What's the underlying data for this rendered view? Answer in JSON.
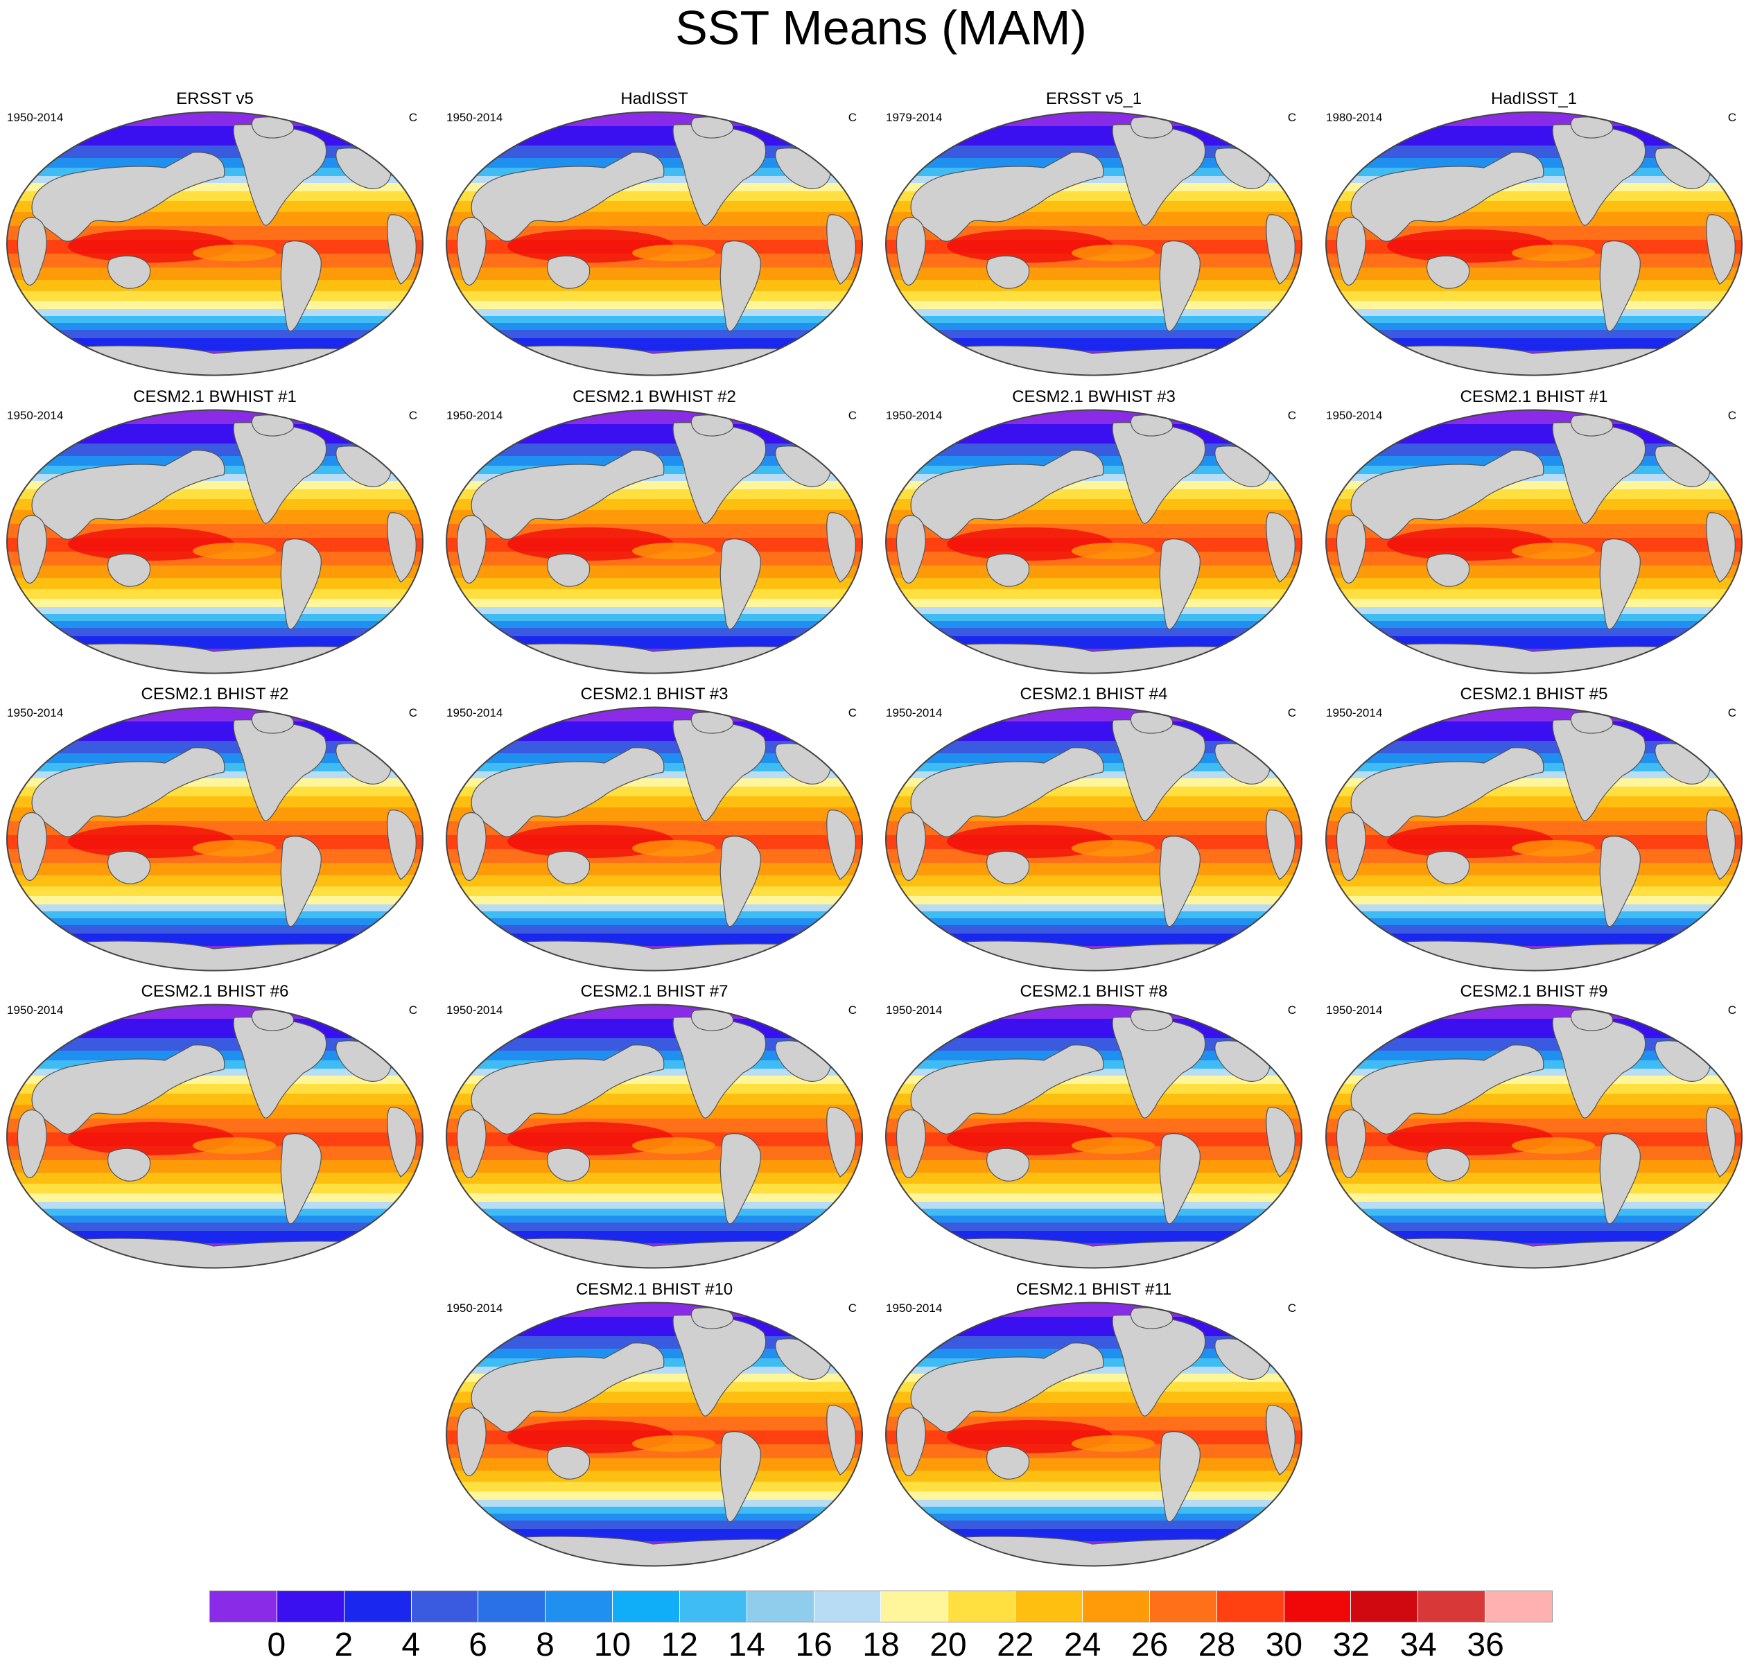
{
  "title": "SST Means (MAM)",
  "units": "C",
  "panels": [
    {
      "title": "ERSST v5",
      "years": "1950-2014",
      "units": "C"
    },
    {
      "title": "HadISST",
      "years": "1950-2014",
      "units": "C"
    },
    {
      "title": "ERSST v5_1",
      "years": "1979-2014",
      "units": "C"
    },
    {
      "title": "HadISST_1",
      "years": "1980-2014",
      "units": "C"
    },
    {
      "title": "CESM2.1 BWHIST #1",
      "years": "1950-2014",
      "units": "C"
    },
    {
      "title": "CESM2.1 BWHIST #2",
      "years": "1950-2014",
      "units": "C"
    },
    {
      "title": "CESM2.1 BWHIST #3",
      "years": "1950-2014",
      "units": "C"
    },
    {
      "title": "CESM2.1 BHIST #1",
      "years": "1950-2014",
      "units": "C"
    },
    {
      "title": "CESM2.1 BHIST #2",
      "years": "1950-2014",
      "units": "C"
    },
    {
      "title": "CESM2.1 BHIST #3",
      "years": "1950-2014",
      "units": "C"
    },
    {
      "title": "CESM2.1 BHIST #4",
      "years": "1950-2014",
      "units": "C"
    },
    {
      "title": "CESM2.1 BHIST #5",
      "years": "1950-2014",
      "units": "C"
    },
    {
      "title": "CESM2.1 BHIST #6",
      "years": "1950-2014",
      "units": "C"
    },
    {
      "title": "CESM2.1 BHIST #7",
      "years": "1950-2014",
      "units": "C"
    },
    {
      "title": "CESM2.1 BHIST #8",
      "years": "1950-2014",
      "units": "C"
    },
    {
      "title": "CESM2.1 BHIST #9",
      "years": "1950-2014",
      "units": "C"
    },
    {
      "title": "CESM2.1 BHIST #10",
      "years": "1950-2014",
      "units": "C"
    },
    {
      "title": "CESM2.1 BHIST #11",
      "years": "1950-2014",
      "units": "C"
    }
  ],
  "colorbar": {
    "labels": [
      "0",
      "2",
      "4",
      "6",
      "8",
      "10",
      "12",
      "14",
      "16",
      "18",
      "20",
      "22",
      "24",
      "26",
      "28",
      "30",
      "32",
      "34",
      "36"
    ],
    "colors": [
      "#8a2be8",
      "#3a10f0",
      "#1a28ef",
      "#3a5ae0",
      "#2a70e6",
      "#2090f0",
      "#10aef8",
      "#40bcf5",
      "#90ccec",
      "#b8dcf4",
      "#fff59a",
      "#ffe040",
      "#ffbf10",
      "#ff9a08",
      "#ff7018",
      "#ff4010",
      "#f00808",
      "#d00810",
      "#d83838",
      "#ffb0b0"
    ]
  },
  "map_colors": {
    "land": "#d0d0d0",
    "coast": "#555555",
    "frame": "#444444"
  }
}
